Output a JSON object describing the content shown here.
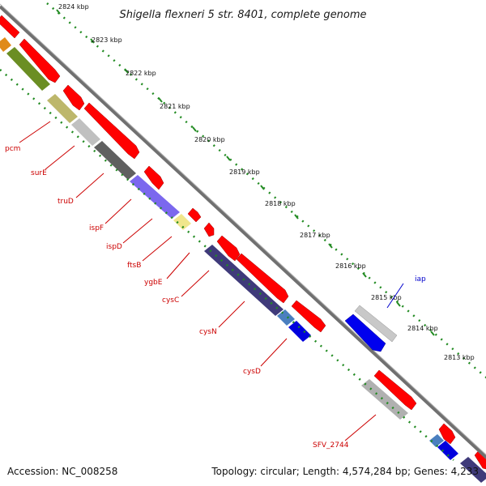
{
  "title": "Shigella flexneri 5 str. 8401, complete genome",
  "footer": {
    "accession": "Accession: NC_008258",
    "topology": "Topology: circular; Length: 4,574,284 bp; Genes: 4,233"
  },
  "kbp_ticks": [
    "2824 kbp",
    "2823 kbp",
    "2822 kbp",
    "2821 kbp",
    "2820 kbp",
    "2819 kbp",
    "2818 kbp",
    "2817 kbp",
    "2816 kbp",
    "2815 kbp",
    "2814 kbp",
    "2813 kbp"
  ],
  "gene_labels": [
    "pcm",
    "surE",
    "truD",
    "ispF",
    "ispD",
    "ftsB",
    "ygbE",
    "cysC",
    "cysN",
    "cysD",
    "SFV_2744",
    "iap"
  ],
  "colors": {
    "backbone": "#808080",
    "ruler": "#228b22",
    "forward_gene": "#ff0000",
    "label_red": "#cc0000",
    "label_blue": "#0000cc"
  },
  "icons": [
    "forward-strand-arrow",
    "reverse-strand-arrow"
  ]
}
